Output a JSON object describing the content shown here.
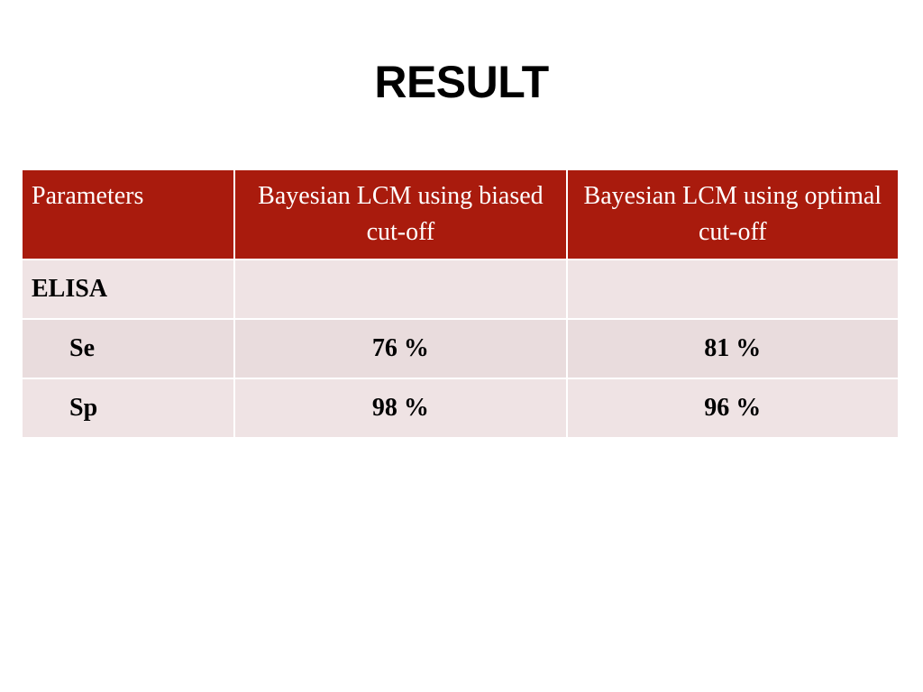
{
  "title": "RESULT",
  "table": {
    "headers": [
      "Parameters",
      "Bayesian LCM using biased cut-off",
      "Bayesian LCM using optimal cut-off"
    ],
    "rows": [
      {
        "param": "ELISA",
        "biased": "",
        "optimal": ""
      },
      {
        "param": "Se",
        "biased": "76 %",
        "optimal": "81 %"
      },
      {
        "param": "Sp",
        "biased": "98 %",
        "optimal": "96 %"
      }
    ]
  },
  "colors": {
    "header_bg": "#a91b0d",
    "header_text": "#ffffff",
    "row_bg_light": "#efe3e4",
    "row_bg_dark": "#e9dcdd"
  }
}
